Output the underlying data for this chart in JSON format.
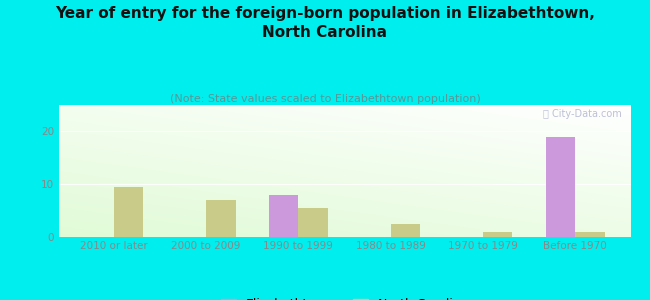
{
  "title": "Year of entry for the foreign-born population in Elizabethtown,\nNorth Carolina",
  "subtitle": "(Note: State values scaled to Elizabethtown population)",
  "categories": [
    "2010 or later",
    "2000 to 2009",
    "1990 to 1999",
    "1980 to 1989",
    "1970 to 1979",
    "Before 1970"
  ],
  "elizabethtown_values": [
    0,
    0,
    8,
    0,
    0,
    19
  ],
  "nc_values": [
    9.5,
    7,
    5.5,
    2.5,
    1,
    1
  ],
  "elizabethtown_color": "#cc99dd",
  "nc_color": "#c8cc88",
  "background_color": "#00eeee",
  "ylim": [
    0,
    25
  ],
  "yticks": [
    0,
    10,
    20
  ],
  "bar_width": 0.32,
  "legend_elizabethtown": "Elizabethtown",
  "legend_nc": "North Carolina",
  "watermark": "ⓘ City-Data.com",
  "title_fontsize": 11,
  "subtitle_fontsize": 8,
  "tick_fontsize": 7.5,
  "legend_fontsize": 9,
  "axis_color": "#888888",
  "title_color": "#111111",
  "subtitle_color": "#559999"
}
